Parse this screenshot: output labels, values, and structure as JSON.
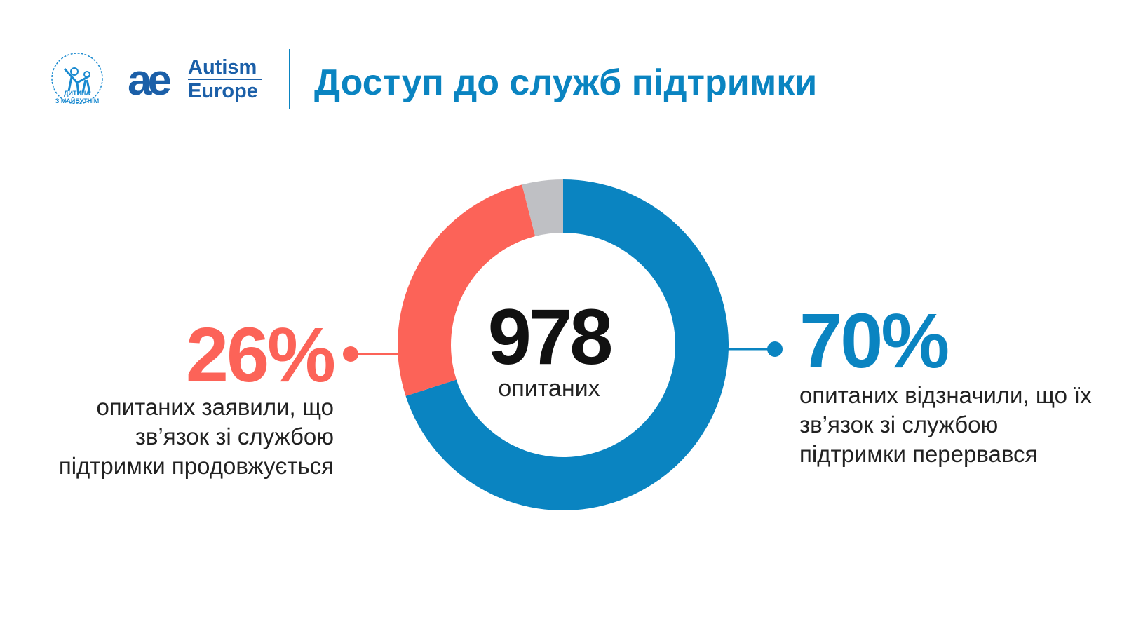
{
  "header": {
    "title": "Доступ до служб підтримки",
    "logo_org_line1": "ДИТИНА",
    "logo_org_line2": "З МАЙБУТНІМ",
    "logo_org_arc": "МІЖНАРОДНА ГРОМАДСЬКА ОРГАНІЗАЦІЯ",
    "logo_ae_mark": "ae",
    "logo_ae_line1": "Autism",
    "logo_ae_line2": "Europe"
  },
  "chart_data": {
    "type": "pie",
    "title": "Доступ до служб підтримки",
    "center_value": "978",
    "center_label": "опитаних",
    "slices": [
      {
        "name": "connection broken",
        "value": 70,
        "label": "70%",
        "description": "опитаних відзначили, що їх зв’язок зі службою підтримки перервався",
        "color": "#0a84c1"
      },
      {
        "name": "connection continues",
        "value": 26,
        "label": "26%",
        "description": "опитаних заявили, що зв’язок зі службою підтримки продовжується",
        "color": "#fc6358"
      },
      {
        "name": "other",
        "value": 4,
        "label": "",
        "description": "",
        "color": "#bfc0c4"
      }
    ]
  }
}
